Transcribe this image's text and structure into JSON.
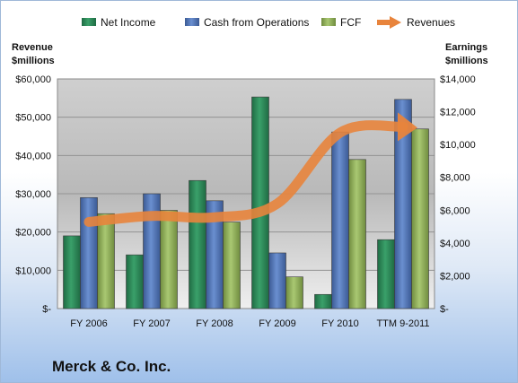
{
  "colors": {
    "net_income": "#2e8b57",
    "cash_from_operations": "#4f74b8",
    "fcf": "#93b55a",
    "revenues": "#e8843c"
  },
  "company": "Merck & Co. Inc.",
  "chart_data": {
    "type": "bar",
    "categories": [
      "FY 2006",
      "FY 2007",
      "FY 2008",
      "FY 2009",
      "FY 2010",
      "TTM 9-2011"
    ],
    "series": [
      {
        "name": "Net Income",
        "axis": "right",
        "values": [
          4433,
          3275,
          7808,
          12901,
          861,
          4200
        ]
      },
      {
        "name": "Cash from Operations",
        "axis": "right",
        "values": [
          6765,
          6999,
          6572,
          3392,
          10765,
          12750
        ]
      },
      {
        "name": "FCF",
        "axis": "right",
        "values": [
          5785,
          5988,
          5272,
          1931,
          9087,
          10950
        ]
      },
      {
        "name": "Revenues",
        "axis": "left",
        "type": "line",
        "values": [
          22636,
          24198,
          23850,
          27428,
          45987,
          47500
        ]
      }
    ],
    "left_axis": {
      "title_line1": "Revenue",
      "title_line2": "$millions",
      "ylim": [
        0,
        60000
      ],
      "ticks": [
        "$-",
        "$10,000",
        "$20,000",
        "$30,000",
        "$40,000",
        "$50,000",
        "$60,000"
      ]
    },
    "right_axis": {
      "title_line1": "Earnings",
      "title_line2": "$millions",
      "ylim": [
        0,
        14000
      ],
      "ticks": [
        "$-",
        "$2,000",
        "$4,000",
        "$6,000",
        "$8,000",
        "$10,000",
        "$12,000",
        "$14,000"
      ]
    },
    "legend": {
      "position": "top"
    },
    "grid": true
  }
}
